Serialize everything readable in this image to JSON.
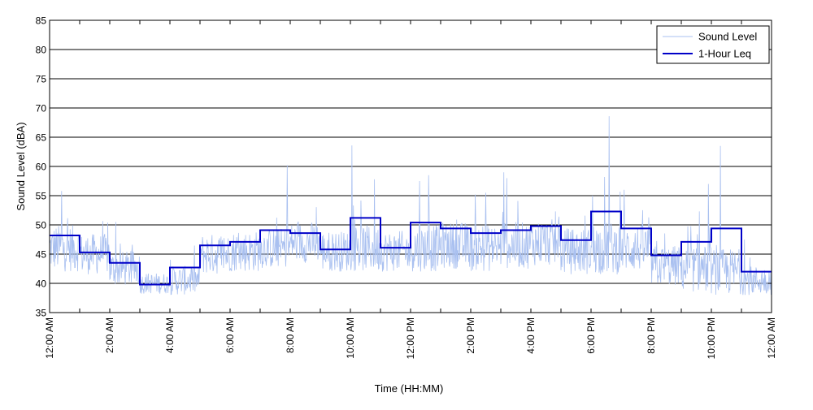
{
  "chart_data": {
    "type": "line",
    "title": "",
    "xlabel": "Time (HH:MM)",
    "ylabel": "Sound Level (dBA)",
    "xlim_hours": [
      0,
      24
    ],
    "ylim": [
      35,
      85
    ],
    "y_ticks": [
      35,
      40,
      45,
      50,
      55,
      60,
      65,
      70,
      75,
      80,
      85
    ],
    "x_tick_hours": [
      0,
      2,
      4,
      6,
      8,
      10,
      12,
      14,
      16,
      18,
      20,
      22,
      24
    ],
    "x_tick_labels": [
      "12:00 AM",
      "2:00 AM",
      "4:00 AM",
      "6:00 AM",
      "8:00 AM",
      "10:00 AM",
      "12:00 PM",
      "2:00 PM",
      "4:00 PM",
      "6:00 PM",
      "8:00 PM",
      "10:00 PM",
      "12:00 AM"
    ],
    "grid": "horizontal",
    "legend": {
      "position": "top-right",
      "entries": [
        "Sound Level",
        "1-Hour Leq"
      ]
    },
    "colors": {
      "sound_level": "#a9c0f0",
      "leq": "#0000c8",
      "grid": "#000000",
      "axes": "#000000"
    },
    "series": [
      {
        "name": "1-Hour Leq",
        "hourly_values": [
          48.2,
          45.3,
          43.5,
          39.8,
          42.7,
          46.5,
          47.1,
          49.1,
          48.6,
          45.8,
          51.2,
          46.1,
          50.4,
          49.4,
          48.6,
          49.1,
          49.8,
          47.4,
          52.3,
          49.4,
          44.8,
          47.1,
          49.4,
          42.0
        ]
      },
      {
        "name": "Sound Level",
        "hourly_base": [
          46,
          45,
          42.5,
          40,
          40.5,
          45,
          45.5,
          46,
          47,
          45.5,
          46,
          45.5,
          46,
          46.5,
          46,
          46.5,
          47,
          45.5,
          46,
          46,
          43,
          42.5,
          42,
          40.5
        ],
        "hourly_spread": [
          4,
          3.5,
          3,
          1.8,
          2.5,
          3.5,
          3.5,
          3.5,
          3.5,
          3.5,
          4,
          3.5,
          4,
          4,
          4,
          4,
          4,
          4,
          4.5,
          4,
          3.5,
          4,
          4,
          2.5
        ],
        "peaks": [
          {
            "hour": 0.4,
            "value": 55.8
          },
          {
            "hour": 2.2,
            "value": 50.5
          },
          {
            "hour": 7.9,
            "value": 60.2
          },
          {
            "hour": 10.05,
            "value": 63.6
          },
          {
            "hour": 10.8,
            "value": 57.8
          },
          {
            "hour": 12.3,
            "value": 57.5
          },
          {
            "hour": 12.6,
            "value": 58.5
          },
          {
            "hour": 14.5,
            "value": 55.5
          },
          {
            "hour": 15.1,
            "value": 59.0
          },
          {
            "hour": 15.2,
            "value": 58.0
          },
          {
            "hour": 18.05,
            "value": 55.0
          },
          {
            "hour": 18.45,
            "value": 58.2
          },
          {
            "hour": 18.6,
            "value": 68.6
          },
          {
            "hour": 19.1,
            "value": 56.0
          },
          {
            "hour": 21.6,
            "value": 52.3
          },
          {
            "hour": 21.9,
            "value": 57.0
          },
          {
            "hour": 22.3,
            "value": 63.5
          },
          {
            "hour": 23.1,
            "value": 47.5
          }
        ]
      }
    ]
  }
}
